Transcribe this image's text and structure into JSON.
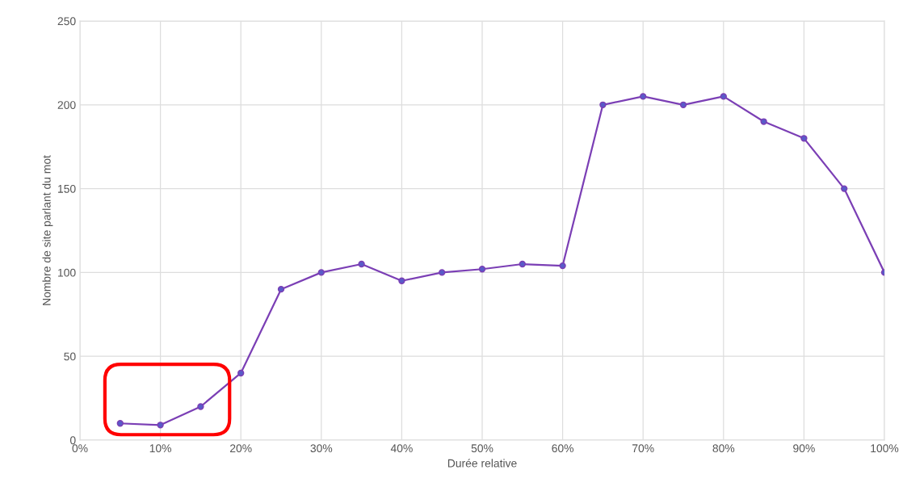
{
  "chart_data": {
    "type": "line",
    "xlabel": "Durée relative",
    "ylabel": "Nombre de site parlant du mot",
    "x": [
      5,
      10,
      15,
      20,
      25,
      30,
      35,
      40,
      45,
      50,
      55,
      60,
      65,
      70,
      75,
      80,
      85,
      90,
      95,
      100
    ],
    "series": [
      {
        "color": "#7b3fb5",
        "values": [
          10,
          9,
          20,
          40,
          90,
          100,
          105,
          95,
          100,
          102,
          105,
          104,
          200,
          205,
          200,
          205,
          190,
          180,
          150,
          100
        ]
      }
    ],
    "xlim": [
      0,
      100
    ],
    "xticks": [
      {
        "value": 0,
        "label": "0%"
      },
      {
        "value": 10,
        "label": "10%"
      },
      {
        "value": 20,
        "label": "20%"
      },
      {
        "value": 30,
        "label": "30%"
      },
      {
        "value": 40,
        "label": "40%"
      },
      {
        "value": 50,
        "label": "50%"
      },
      {
        "value": 60,
        "label": "60%"
      },
      {
        "value": 70,
        "label": "70%"
      },
      {
        "value": 80,
        "label": "80%"
      },
      {
        "value": 90,
        "label": "90%"
      },
      {
        "value": 100,
        "label": "100%"
      }
    ],
    "ylim": [
      0,
      250
    ],
    "yticks": [
      0,
      50,
      100,
      150,
      200,
      250
    ],
    "grid": true,
    "marker": "circle",
    "line_style": "solid"
  }
}
